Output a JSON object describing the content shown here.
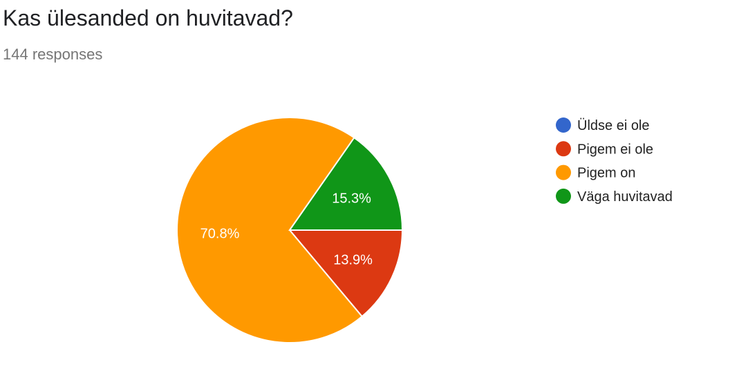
{
  "header": {
    "title": "Kas ülesanded on huvitavad?",
    "subtitle": "144 responses"
  },
  "chart_data": {
    "type": "pie",
    "title": "Kas ülesanded on huvitavad?",
    "total_responses": 144,
    "slices": [
      {
        "label": "Üldse ei ole",
        "value": 0,
        "percent_label": "",
        "color": "#3366cc"
      },
      {
        "label": "Pigem ei ole",
        "value": 13.9,
        "percent_label": "13.9%",
        "color": "#dc3912"
      },
      {
        "label": "Pigem on",
        "value": 70.8,
        "percent_label": "70.8%",
        "color": "#ff9900"
      },
      {
        "label": "Väga huvitavad",
        "value": 15.3,
        "percent_label": "15.3%",
        "color": "#109618"
      }
    ],
    "legend_position": "right"
  }
}
